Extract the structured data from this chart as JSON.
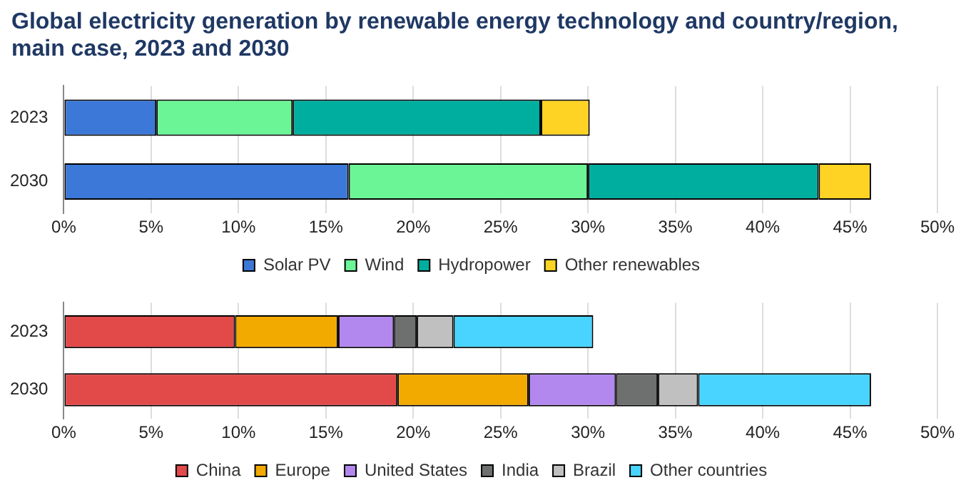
{
  "chart_data": [
    {
      "type": "bar",
      "orientation": "horizontal",
      "stacked": true,
      "title": "Global electricity generation by renewable energy technology and country/region, main case, 2023 and 2030",
      "categories": [
        "2023",
        "2030"
      ],
      "series": [
        {
          "name": "Solar PV",
          "color": "#3c78d8",
          "values": [
            5.3,
            16.3
          ]
        },
        {
          "name": "Wind",
          "color": "#6cf596",
          "values": [
            7.8,
            13.7
          ]
        },
        {
          "name": "Hydropower",
          "color": "#00ae9f",
          "values": [
            14.2,
            13.2
          ]
        },
        {
          "name": "Other renewables",
          "color": "#ffd324",
          "values": [
            2.8,
            3.0
          ]
        }
      ],
      "xlim": [
        0,
        50
      ],
      "xticks": [
        {
          "value": 0,
          "label": "0%"
        },
        {
          "value": 5,
          "label": "5%"
        },
        {
          "value": 10,
          "label": "10%"
        },
        {
          "value": 15,
          "label": "15%"
        },
        {
          "value": 20,
          "label": "20%"
        },
        {
          "value": 25,
          "label": "25%"
        },
        {
          "value": 30,
          "label": "30%"
        },
        {
          "value": 35,
          "label": "35%"
        },
        {
          "value": 40,
          "label": "40%"
        },
        {
          "value": 45,
          "label": "45%"
        },
        {
          "value": 50,
          "label": "50%"
        }
      ],
      "grid": "x",
      "legend": "bottom"
    },
    {
      "type": "bar",
      "orientation": "horizontal",
      "stacked": true,
      "categories": [
        "2023",
        "2030"
      ],
      "series": [
        {
          "name": "China",
          "color": "#e24a4a",
          "values": [
            9.8,
            19.1
          ]
        },
        {
          "name": "Europe",
          "color": "#f2a900",
          "values": [
            5.9,
            7.5
          ]
        },
        {
          "name": "United States",
          "color": "#b388ee",
          "values": [
            3.2,
            5.0
          ]
        },
        {
          "name": "India",
          "color": "#6e706f",
          "values": [
            1.3,
            2.4
          ]
        },
        {
          "name": "Brazil",
          "color": "#c0c0c0",
          "values": [
            2.1,
            2.3
          ]
        },
        {
          "name": "Other countries",
          "color": "#48d4ff",
          "values": [
            8.0,
            9.9
          ]
        }
      ],
      "xlim": [
        0,
        50
      ],
      "xticks": [
        {
          "value": 0,
          "label": "0%"
        },
        {
          "value": 5,
          "label": "5%"
        },
        {
          "value": 10,
          "label": "10%"
        },
        {
          "value": 15,
          "label": "15%"
        },
        {
          "value": 20,
          "label": "20%"
        },
        {
          "value": 25,
          "label": "25%"
        },
        {
          "value": 30,
          "label": "30%"
        },
        {
          "value": 35,
          "label": "35%"
        },
        {
          "value": 40,
          "label": "40%"
        },
        {
          "value": 45,
          "label": "45%"
        },
        {
          "value": 50,
          "label": "50%"
        }
      ],
      "grid": "x",
      "legend": "bottom"
    }
  ]
}
